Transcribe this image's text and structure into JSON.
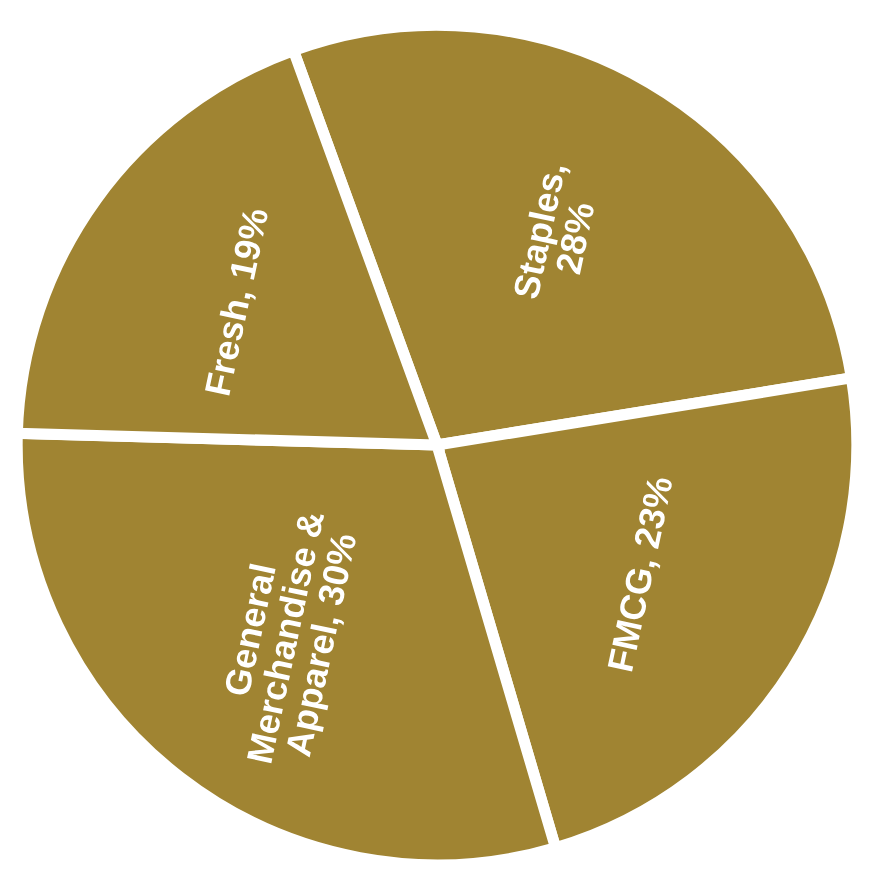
{
  "chart_data": {
    "type": "pie",
    "categories": [
      "Staples,\n28%",
      "FMCG, 23%",
      "General\nMerchandise &\nApparel, 30%",
      "Fresh, 19%"
    ],
    "values": [
      28,
      23,
      30,
      19
    ],
    "colors": [
      "#a08432",
      "#a08432",
      "#a08432",
      "#a08432"
    ]
  }
}
